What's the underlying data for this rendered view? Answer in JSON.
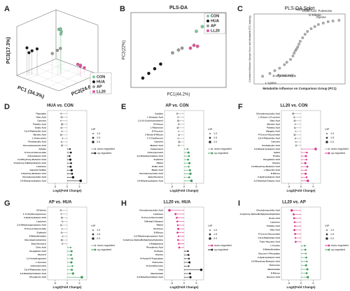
{
  "chart_data": [
    {
      "type": "scatter3d",
      "panel": "A",
      "x_label": "PC1 (34.3%)",
      "y_label": "PC2(24.6%)",
      "z_label": "PC3(17.3%)",
      "xlim": [
        -40,
        40
      ],
      "ylim": [
        -40,
        40
      ],
      "zlim": [
        -40,
        40
      ],
      "series": [
        {
          "name": "CON",
          "color": "#7fc79a",
          "x": [
            -5,
            -8,
            -3,
            -10,
            -6
          ],
          "y": [
            -2,
            0,
            3,
            -4,
            1
          ],
          "z": [
            32,
            28,
            35,
            30,
            25
          ]
        },
        {
          "name": "HUA",
          "color": "#1a1a1a",
          "x": [
            30,
            25,
            20,
            28
          ],
          "y": [
            -30,
            -25,
            -20,
            -28
          ],
          "z": [
            5,
            0,
            3,
            -3
          ]
        },
        {
          "name": "AP",
          "color": "#9a9a9a",
          "x": [
            0,
            5,
            -3
          ],
          "y": [
            0,
            -5,
            3
          ],
          "z": [
            0,
            -5,
            3
          ]
        },
        {
          "name": "LL20",
          "color": "#e2559c",
          "x": [
            -20,
            -15,
            -25,
            -18
          ],
          "y": [
            25,
            30,
            28,
            22
          ],
          "z": [
            -25,
            -20,
            -28,
            -22
          ]
        }
      ]
    },
    {
      "type": "scatter",
      "panel": "B",
      "title": "PLS-DA",
      "x_label": "PC1(44.2%)",
      "y_label": "PC2(22%)",
      "xlim": [
        -4,
        4
      ],
      "ylim": [
        -4,
        4
      ],
      "series": [
        {
          "name": "CON",
          "color": "#7fc79a",
          "x": [
            1.5,
            2.0,
            2.5
          ],
          "y": [
            2.0,
            2.5,
            2.2
          ]
        },
        {
          "name": "HUA",
          "color": "#1a1a1a",
          "x": [
            -3.0,
            -2.5,
            -2.0,
            -1.5
          ],
          "y": [
            -3.0,
            -2.5,
            -2.0,
            -1.5
          ]
        },
        {
          "name": "AP",
          "color": "#9a9a9a",
          "x": [
            -0.5,
            0,
            0.3
          ],
          "y": [
            -0.3,
            0,
            0.2
          ]
        },
        {
          "name": "LL20",
          "color": "#e2559c",
          "x": [
            1.0,
            1.3,
            1.6
          ],
          "y": [
            0.2,
            0.5,
            0.4
          ]
        }
      ]
    },
    {
      "type": "splot",
      "panel": "C",
      "title": "PLS-DA Splot",
      "x_label": "Metabolite influence on Comparison Group (PC1)",
      "y_label": "Correlation Between Sample Score and Metabolite (PC1 loading)",
      "xlim": [
        -0.35,
        0.4
      ],
      "ylim": [
        -1,
        1
      ],
      "color": "#8a8a8a",
      "x": [
        -0.28,
        -0.22,
        -0.18,
        -0.14,
        -0.1,
        -0.08,
        -0.05,
        -0.03,
        -0.02,
        -0.01,
        0,
        0.01,
        0.02,
        0.03,
        0.05,
        0.07,
        0.09,
        0.12,
        0.15,
        0.18,
        0.22,
        0.26,
        0.3,
        0.35
      ],
      "y": [
        -0.78,
        -0.7,
        -0.62,
        -0.55,
        -0.45,
        -0.38,
        -0.3,
        -0.2,
        -0.12,
        -0.05,
        0,
        0.06,
        0.14,
        0.22,
        0.32,
        0.42,
        0.5,
        0.58,
        0.64,
        0.7,
        0.74,
        0.78,
        0.8,
        0.82
      ],
      "annotations": [
        {
          "text": "Glycine",
          "x": 0.3,
          "y": 0.8
        },
        {
          "text": "D-Ribose",
          "x": 0.26,
          "y": 0.78
        },
        {
          "text": "Putrescine",
          "x": 0.35,
          "y": 0.82
        },
        {
          "text": "Orotic Acid",
          "x": 0.22,
          "y": 0.74
        },
        {
          "text": "Niacinamide",
          "x": 0.18,
          "y": 0.7
        },
        {
          "text": "L-Lysine",
          "x": -0.28,
          "y": -0.78
        },
        {
          "text": "D-Glyceraldehyde",
          "x": -0.22,
          "y": -0.7
        },
        {
          "text": "Pyruvic Acid",
          "x": -0.18,
          "y": -0.62
        }
      ]
    },
    {
      "type": "lollipop",
      "panel": "D",
      "title": "HUA vs. CON",
      "x_label": "Log2(Fold Change)",
      "xlim": [
        -8,
        8
      ],
      "xticks": [
        -5,
        0,
        5
      ],
      "vip_title": "VIP",
      "vip_legend": [
        {
          "value": 1,
          "label": "1.0"
        },
        {
          "value": 1.5,
          "label": "1.5"
        },
        {
          "value": 2,
          "label": "2.0"
        }
      ],
      "categories": [
        "Thymidine",
        "Oleic Acid",
        "Cytosine",
        "Palmitic Acid",
        "Oxalic Acid",
        "Cis-9-Palmitoleic Acid",
        "Myristic Acid",
        "L-Homoserine",
        "Pentadecylic Acid",
        "Docosahexaenoic Acid",
        "Arbutin",
        "P-Cresol Glucuronide",
        "2-Ketobutyric Acid",
        "2,4-Dihydroxy-Butanoic Acid",
        "2-Hydroxy-3-Methyl-Butyric Acid",
        "Lactulose",
        "Catechol Sulfate",
        "3-Hydroxy-Butanoic Acid",
        "Chenodeoxycholic Acid",
        "3,4-Dihydroxybutyric Acid"
      ],
      "vip": [
        1.4,
        1.6,
        1.2,
        1.8,
        1.5,
        1.3,
        1.7,
        1.2,
        1.4,
        1.6,
        1.2,
        1.5,
        1.3,
        1.7,
        1.4,
        1.6,
        1.8,
        1.5,
        1.9,
        2.0
      ],
      "series": [
        {
          "name": "down-regulated",
          "color": "#a0a0a0",
          "values": [
            -2.5,
            -2.3,
            -2.6,
            -2.1,
            -2.4,
            -2.2,
            -2.5,
            -2.0,
            -2.3,
            -2.2,
            null,
            null,
            null,
            null,
            null,
            null,
            null,
            null,
            null,
            null
          ]
        },
        {
          "name": "up-regulated",
          "color": "#1a1a1a",
          "values": [
            null,
            null,
            null,
            null,
            null,
            null,
            null,
            null,
            null,
            null,
            1.2,
            1.5,
            1.0,
            1.3,
            1.6,
            1.4,
            1.8,
            2.0,
            2.4,
            5.5
          ]
        }
      ]
    },
    {
      "type": "lollipop",
      "panel": "E",
      "title": "AP vs. CON",
      "x_label": "Log2(Fold Change)",
      "xlim": [
        -8,
        8
      ],
      "xticks": [
        -5,
        0,
        5
      ],
      "vip_title": "VIP",
      "vip_legend": [
        {
          "value": 1,
          "label": "1.0"
        },
        {
          "value": 1.5,
          "label": "1.5"
        },
        {
          "value": 2,
          "label": "2.0"
        }
      ],
      "categories": [
        "Cytidine",
        "L-Glutamic Acid",
        "1,2,4,5-Cyclohexanetetrol",
        "DI-Xylose",
        "L-Rhamnose",
        "D-Fructose",
        "2-Deoxy-D-Ribose",
        "1'-C-Oxylhexose",
        "Catechol",
        "Malonic Acid",
        "Campesterol",
        "2-Deoxyinositol",
        "3,3-Dimethyl-Glutaric Acid",
        "Erythritol",
        "Ribitol",
        "Oxalic Acid",
        "Maleic Acid",
        "Chenodeoxycholic Acid",
        "Beta-Sitosterol",
        "3,4-Dihydroxybutyric Acid"
      ],
      "vip": [
        1.5,
        1.3,
        1.7,
        1.4,
        1.6,
        1.2,
        1.5,
        1.3,
        1.8,
        1.4,
        1.2,
        1.6,
        1.4,
        1.5,
        1.7,
        1.3,
        1.6,
        1.8,
        1.5,
        2.0
      ],
      "series": [
        {
          "name": "down-regulated",
          "color": "#a0a0a0",
          "values": [
            -2.8,
            -2.5,
            -2.4,
            -2.2,
            -2.6,
            -2.3,
            -2.1,
            -2.4,
            -2.0,
            -2.2,
            null,
            null,
            null,
            null,
            null,
            null,
            null,
            null,
            null,
            null
          ]
        },
        {
          "name": "up-regulated",
          "color": "#3f9a5c",
          "values": [
            null,
            null,
            null,
            null,
            null,
            null,
            null,
            null,
            null,
            null,
            1.5,
            1.8,
            2.0,
            1.6,
            2.2,
            1.9,
            2.4,
            2.6,
            2.1,
            3.0
          ]
        }
      ]
    },
    {
      "type": "lollipop",
      "panel": "F",
      "title": "LL20 vs. CON",
      "x_label": "Log2(Fold Change)",
      "xlim": [
        -8,
        8
      ],
      "xticks": [
        -5,
        0,
        5
      ],
      "vip_title": "VIP",
      "vip_legend": [
        {
          "value": 1,
          "label": "1.0"
        },
        {
          "value": 1.5,
          "label": "1.5"
        },
        {
          "value": 2,
          "label": "2.0"
        }
      ],
      "categories": [
        "Chenodeoxycholic Acid",
        "L-Gulono-1,4-Lactone",
        "Oleic Acid",
        "Myristic Acid",
        "Palmitic Acid",
        "Margaric Acid",
        "P-Cresol Glucuronide",
        "Cis-9-Palmitoleic Acid",
        "Cytosine",
        "Pentadecylic Acid",
        "3,4-Dihydroxybutyric Acid",
        "Xylitol",
        "Proline",
        "Oxoglutaric Acid",
        "Glycine",
        "2,4-Dihydroxy-Butanoic Acid",
        "L-Pipecolic Acid",
        "D-Ribose",
        "2-Hydroxybutyric Acid",
        "3,3-Dimethyl-Glutaric Acid"
      ],
      "vip": [
        1.8,
        1.4,
        1.6,
        1.3,
        1.5,
        1.2,
        1.7,
        1.4,
        1.3,
        1.5,
        2.0,
        1.4,
        1.6,
        1.3,
        1.7,
        1.5,
        1.2,
        1.6,
        1.4,
        1.9
      ],
      "series": [
        {
          "name": "down-regulated",
          "color": "#a0a0a0",
          "values": [
            -3.2,
            -2.8,
            -2.6,
            -2.4,
            -2.5,
            -2.2,
            -2.6,
            -2.3,
            -2.1,
            -2.0,
            null,
            null,
            null,
            null,
            null,
            null,
            null,
            null,
            null,
            null
          ]
        },
        {
          "name": "up-regulated",
          "color": "#d6338a",
          "values": [
            null,
            null,
            null,
            null,
            null,
            null,
            null,
            null,
            null,
            null,
            6.0,
            2.4,
            2.0,
            2.2,
            1.8,
            2.6,
            2.1,
            1.9,
            2.3,
            2.8
          ]
        }
      ]
    },
    {
      "type": "lollipop",
      "panel": "G",
      "title": "AP vs. HUA",
      "x_label": "Log2(Fold Change)",
      "xlim": [
        -8,
        8
      ],
      "xticks": [
        -5,
        0,
        5
      ],
      "vip_title": "VIP",
      "vip_legend": [
        {
          "value": 1,
          "label": "1.0"
        },
        {
          "value": 1.5,
          "label": "1.5"
        },
        {
          "value": 2,
          "label": "2.0"
        }
      ],
      "categories": [
        "DI-Xylose",
        "1'-C-Oxylhexopyranose",
        "2-Hydroxybutyric Acid",
        "Lactulose",
        "2,2-Dihydroxypropanoic Acid",
        "P-Cresol Glucuronide",
        "Erythritol",
        "3-Methylhistidine",
        "Glucoheptonolactone",
        "Beta-Sitosterol",
        "Citric Acid",
        "Oxoglutaric Acid",
        "Glycerol",
        "1,5-Anhydroglucitol",
        "L-Tyrosine",
        "2-Deoxyinositol",
        "Cis-9-Palmitoleic Acid",
        "3,3-Dimethyl-Glutaric Acid",
        "Phosphoric Acid"
      ],
      "vip": [
        1.5,
        1.3,
        1.7,
        1.4,
        1.6,
        1.2,
        1.5,
        1.3,
        1.8,
        1.4,
        1.2,
        1.6,
        1.4,
        1.5,
        1.7,
        1.3,
        1.6,
        1.8,
        2.0
      ],
      "series": [
        {
          "name": "down-regulated",
          "color": "#a0a0a0",
          "values": [
            -2.6,
            -2.4,
            -2.2,
            -2.0,
            -2.5,
            -2.1,
            -2.3,
            -1.9,
            -2.2,
            -2.0,
            null,
            null,
            null,
            null,
            null,
            null,
            null,
            null,
            null
          ]
        },
        {
          "name": "up-regulated",
          "color": "#3f9a5c",
          "values": [
            null,
            null,
            null,
            null,
            null,
            null,
            null,
            null,
            null,
            null,
            1.4,
            1.8,
            1.6,
            2.0,
            1.7,
            2.2,
            1.9,
            2.4,
            6.0
          ]
        }
      ]
    },
    {
      "type": "lollipop",
      "panel": "H",
      "title": "LL20 vs. HUA",
      "x_label": "Log2(Fold Change)",
      "xlim": [
        -8,
        8
      ],
      "xticks": [
        -5,
        0,
        5
      ],
      "vip_title": "VIP",
      "vip_legend": [
        {
          "value": 1,
          "label": "1.0"
        },
        {
          "value": 1.5,
          "label": "1.5"
        },
        {
          "value": 2,
          "label": "2.0"
        }
      ],
      "categories": [
        "Chenodeoxycholic Acid",
        "Lactulose",
        "P-Cresol Glucuronide",
        "3-Methyl-2-Butanol",
        "Ribitol",
        "DI-Xylose",
        "D-Ribose",
        "2,2-Dihydroxypropanoic Acid",
        "4-Hydroxy-Alpha-Methylphenethylamine",
        "3-Ethylphenol",
        "Phosphoric Acid",
        "Urethane",
        "Glycine",
        "N-Acetyl-D-Tryptophan",
        "Putrescine",
        "N-Acetyltyrosine",
        "Urea",
        "Niacinamide",
        "3,3-Dimethyl-Glutaric Acid"
      ],
      "vip": [
        2.0,
        1.6,
        1.5,
        1.4,
        1.3,
        1.6,
        1.5,
        1.2,
        1.4,
        1.3,
        1.5,
        1.2,
        1.4,
        1.3,
        1.6,
        1.2,
        1.9,
        1.5,
        1.7
      ],
      "series": [
        {
          "name": "down-regulated",
          "color": "#d6338a",
          "values": [
            -6.0,
            -3.5,
            -3.0,
            -2.8,
            -2.6,
            -2.4,
            -2.7,
            -2.3,
            -2.5,
            -2.2,
            -2.0,
            null,
            null,
            null,
            null,
            null,
            null,
            null,
            null
          ]
        },
        {
          "name": "up-regulated",
          "color": "#1a1a1a",
          "values": [
            null,
            null,
            null,
            null,
            null,
            null,
            null,
            null,
            null,
            null,
            null,
            1.6,
            1.8,
            2.0,
            2.2,
            1.9,
            7.0,
            2.4,
            2.6
          ]
        }
      ]
    },
    {
      "type": "lollipop",
      "panel": "I",
      "title": "LL20 vs. AP",
      "x_label": "Log2(Fold Change)",
      "xlim": [
        -8,
        8
      ],
      "xticks": [
        -5,
        0,
        5
      ],
      "vip_title": "VIP",
      "vip_legend": [
        {
          "value": 1,
          "label": "1.0"
        },
        {
          "value": 1.5,
          "label": "1.5"
        },
        {
          "value": 2,
          "label": "2.0"
        }
      ],
      "categories": [
        "Chenodeoxycholic Acid",
        "4-Hydroxy-Alpha-Methylphenethylamine",
        "Orotic Acid",
        "Lactulose",
        "Palmitic Acid",
        "Oleic Acid",
        "P-Cresol Glucuronide",
        "Cis-9-Palmitoleic Acid",
        "Trans-Vaccenic Acid",
        "L-Cystine",
        "3-Methylhistidine",
        "Glucose-1-Phosphate",
        "2-Hydroxybutyric Acid",
        "2,4-Dihydroxy-Butanoic Acid",
        "Putrescine",
        "Niacinamide",
        "D-Ribose",
        "Benzoic Acid"
      ],
      "vip": [
        1.9,
        1.6,
        1.5,
        1.4,
        1.3,
        1.6,
        1.5,
        1.2,
        1.4,
        1.3,
        1.5,
        1.2,
        1.4,
        1.3,
        1.6,
        1.7,
        1.5,
        1.8
      ],
      "series": [
        {
          "name": "down-regulated",
          "color": "#d6338a",
          "values": [
            -3.8,
            -3.0,
            -2.8,
            -2.6,
            -2.5,
            -2.7,
            -2.4,
            -2.3,
            -2.2,
            null,
            null,
            null,
            null,
            null,
            null,
            null,
            null,
            null
          ]
        },
        {
          "name": "up-regulated",
          "color": "#3f9a5c",
          "values": [
            null,
            null,
            null,
            null,
            null,
            null,
            null,
            null,
            null,
            1.6,
            1.8,
            2.0,
            2.2,
            2.4,
            2.1,
            2.6,
            2.3,
            2.8
          ]
        }
      ]
    }
  ]
}
